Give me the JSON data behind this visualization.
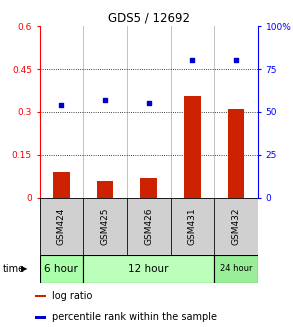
{
  "title": "GDS5 / 12692",
  "samples": [
    "GSM424",
    "GSM425",
    "GSM426",
    "GSM431",
    "GSM432"
  ],
  "log_ratio": [
    0.09,
    0.06,
    0.07,
    0.355,
    0.31
  ],
  "percentile_rank": [
    54,
    57,
    55,
    80,
    80
  ],
  "bar_color": "#cc2200",
  "dot_color": "#0000cc",
  "left_yticks": [
    0,
    0.15,
    0.3,
    0.45,
    0.6
  ],
  "right_yticks": [
    0,
    25,
    50,
    75,
    100
  ],
  "right_yticklabels": [
    "0",
    "25",
    "50",
    "75",
    "100%"
  ],
  "ylim_left": [
    0,
    0.6
  ],
  "ylim_right": [
    0,
    100
  ],
  "hlines": [
    0.15,
    0.3,
    0.45
  ],
  "time_groups": [
    {
      "label": "6 hour",
      "start": 0,
      "end": 1,
      "color": "#aaffaa"
    },
    {
      "label": "12 hour",
      "start": 1,
      "end": 4,
      "color": "#bbffbb"
    },
    {
      "label": "24 hour",
      "start": 4,
      "end": 5,
      "color": "#99ee99"
    }
  ],
  "sample_bg": "#d0d0d0",
  "legend_log_ratio": "log ratio",
  "legend_pct": "percentile rank within the sample",
  "bar_color_legend": "#cc2200",
  "dot_color_legend": "#0000cc"
}
